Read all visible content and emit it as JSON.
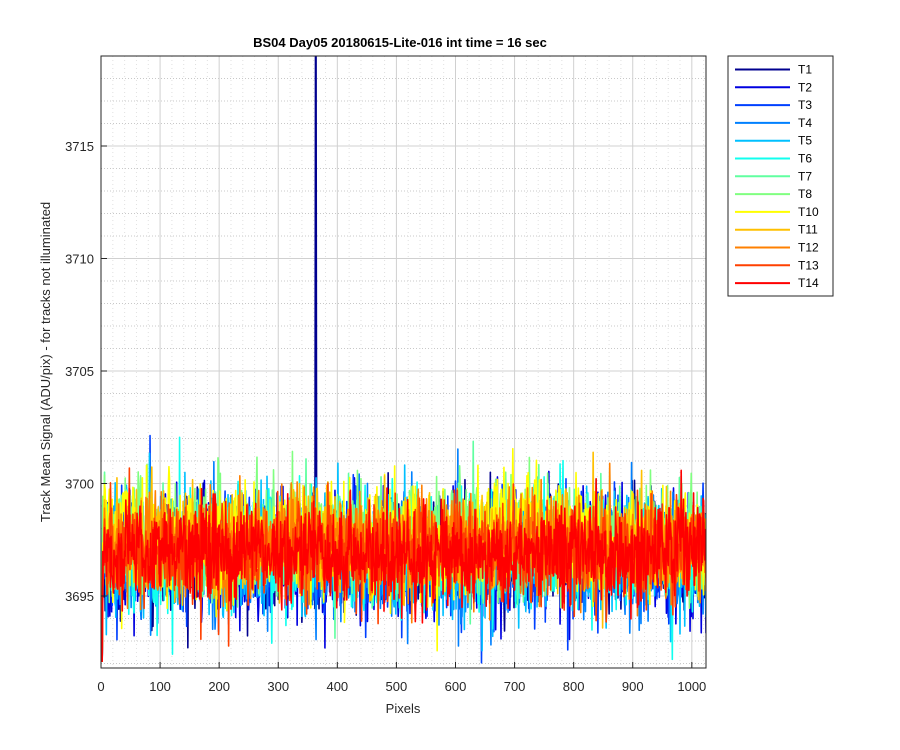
{
  "chart_data": {
    "type": "line",
    "title": "BS04 Day05 20180615-Lite-016 int time = 16 sec",
    "xlabel": "Pixels",
    "ylabel": "Track Mean Signal (ADU/pix) - for tracks not illuminated",
    "xlim": [
      0,
      1024
    ],
    "ylim": [
      3691.8,
      3719.0
    ],
    "xticks": [
      0,
      100,
      200,
      300,
      400,
      500,
      600,
      700,
      800,
      900,
      1000
    ],
    "yticks": [
      3695,
      3700,
      3705,
      3710,
      3715
    ],
    "y_minor_step": 1,
    "x_minor_step": 20,
    "grid": true,
    "minor_grid": true,
    "legend_position": "outside-top-right",
    "series": [
      {
        "name": "T1",
        "color": "#00008f",
        "mean": 3696.9,
        "spread": 1.2,
        "spike": {
          "x": 363,
          "y": 3719.0
        }
      },
      {
        "name": "T2",
        "color": "#0000e0",
        "mean": 3696.7,
        "spread": 1.3
      },
      {
        "name": "T3",
        "color": "#0040ff",
        "mean": 3696.8,
        "spread": 1.2
      },
      {
        "name": "T4",
        "color": "#0080ff",
        "mean": 3696.6,
        "spread": 1.3
      },
      {
        "name": "T5",
        "color": "#00c0ff",
        "mean": 3696.9,
        "spread": 1.3
      },
      {
        "name": "T6",
        "color": "#10ffef",
        "mean": 3697.0,
        "spread": 1.3
      },
      {
        "name": "T7",
        "color": "#60ffa0",
        "mean": 3697.4,
        "spread": 1.1
      },
      {
        "name": "T8",
        "color": "#80ff80",
        "mean": 3697.6,
        "spread": 1.2
      },
      {
        "name": "T10",
        "color": "#ffff00",
        "mean": 3697.5,
        "spread": 1.2,
        "bump": {
          "from": 600,
          "to": 800,
          "add": 1.6
        }
      },
      {
        "name": "T11",
        "color": "#ffc000",
        "mean": 3697.3,
        "spread": 1.1
      },
      {
        "name": "T12",
        "color": "#ff8000",
        "mean": 3697.2,
        "spread": 1.1
      },
      {
        "name": "T13",
        "color": "#ff4000",
        "mean": 3697.0,
        "spread": 1.1
      },
      {
        "name": "T14",
        "color": "#ff0000",
        "mean": 3696.9,
        "spread": 1.1
      }
    ]
  }
}
